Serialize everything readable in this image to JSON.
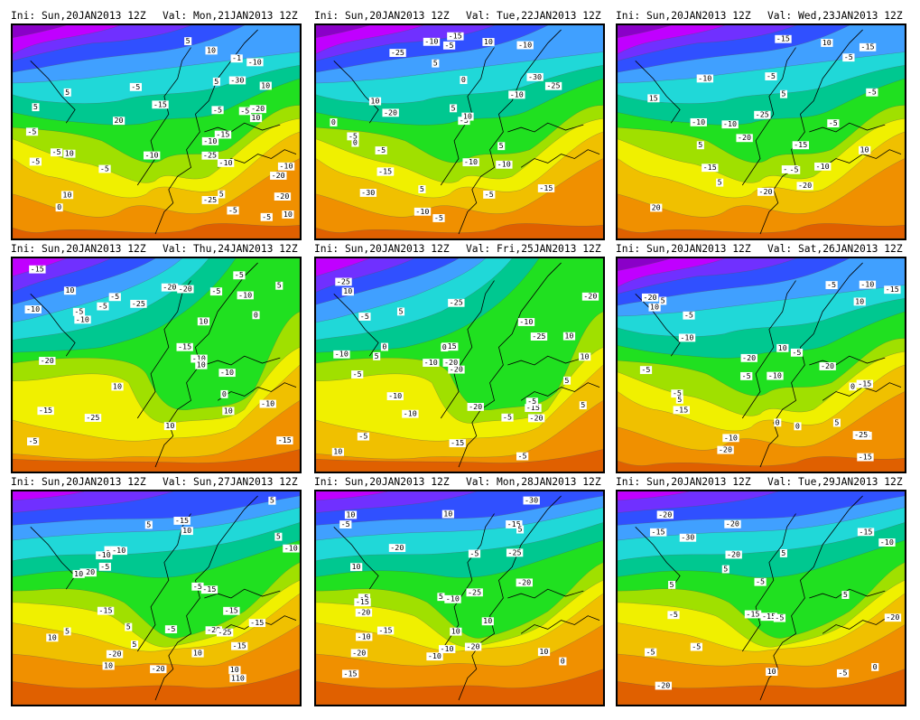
{
  "colors": {
    "deep_purple": "#8a00c8",
    "magenta": "#c000ff",
    "violet": "#7030ff",
    "blue": "#3050ff",
    "light_blue": "#40a0ff",
    "cyan": "#20d8d8",
    "teal": "#00c890",
    "green": "#20e020",
    "yellow_green": "#a0e000",
    "yellow": "#f0f000",
    "amber": "#f0c000",
    "orange": "#f09000",
    "dark_orange": "#e06000",
    "red": "#c02000"
  },
  "panels": [
    {
      "ini": "Ini: Sun,20JAN2013 12Z",
      "val": "Val: Mon,21JAN2013 12Z",
      "scheme": "cold_north",
      "labels": [
        "-25",
        "-10",
        "-5",
        "-20",
        "-25",
        "-30",
        "-20",
        "-15",
        "-20",
        "-5",
        "-15",
        "-10",
        "-5",
        "-10",
        "-5",
        "-5",
        "-10",
        "-5",
        "-1",
        "-5",
        "-10",
        "-5",
        "-5",
        "10",
        "10",
        "10",
        "5",
        "5",
        "10",
        "10",
        "10",
        "5",
        "5",
        "5",
        "20",
        "0"
      ]
    },
    {
      "ini": "Ini: Sun,20JAN2013 12Z",
      "val": "Val: Tue,22JAN2013 12Z",
      "scheme": "cold_north",
      "labels": [
        "-30",
        "-10",
        "-25",
        "-30",
        "-10",
        "-20",
        "-5",
        "-15",
        "-25",
        "-10",
        "-5",
        "-15",
        "-10",
        "-5",
        "-5",
        "-10",
        "-15",
        "0",
        "-15",
        "-10",
        "-5",
        "-5",
        "5",
        "10",
        "5",
        "5",
        "0",
        "10",
        "0",
        "5",
        "10"
      ]
    },
    {
      "ini": "Ini: Sun,20JAN2013 12Z",
      "val": "Val: Wed,23JAN2013 12Z",
      "scheme": "cold_north",
      "labels": [
        "-15",
        "-25",
        "-20",
        "-30",
        "-10",
        "-15",
        "-20",
        "-15",
        "-10",
        "-5",
        "-20",
        "-10",
        "-15",
        "-10",
        "-5",
        "-5",
        "-5",
        "-5",
        "5",
        "5",
        "10",
        "10",
        "20",
        "5",
        "15"
      ]
    },
    {
      "ini": "Ini: Sun,20JAN2013 12Z",
      "val": "Val: Thu,24JAN2013 12Z",
      "scheme": "cold_west",
      "labels": [
        "-10",
        "-25",
        "-20",
        "-25",
        "-10",
        "-15",
        "-5",
        "-15",
        "-20",
        "-20",
        "-10",
        "-5",
        "-10",
        "-15",
        "-10",
        "-5",
        "-5",
        "-10",
        "-15",
        "-5",
        "0",
        "-5",
        "0",
        "10",
        "10",
        "10",
        "5",
        "10",
        "10",
        "0",
        "10"
      ]
    },
    {
      "ini": "Ini: Sun,20JAN2013 12Z",
      "val": "Val: Fri,25JAN2013 12Z",
      "scheme": "cold_west",
      "labels": [
        "-15",
        "-20",
        "-25",
        "-10",
        "-25",
        "-15",
        "-5",
        "-10",
        "-20",
        "-20",
        "-5",
        "-25",
        "-20",
        "-20",
        "-15",
        "-10",
        "-5",
        "-5",
        "-10",
        "-5",
        "-10",
        "-5",
        "0",
        "10",
        "5",
        "5",
        "10",
        "0",
        "10",
        "5",
        "5",
        "10"
      ]
    },
    {
      "ini": "Ini: Sun,20JAN2013 12Z",
      "val": "Val: Sat,26JAN2013 12Z",
      "scheme": "cold_north",
      "labels": [
        "-15",
        "-20",
        "-25",
        "-20",
        "-25",
        "-10",
        "-20",
        "-15",
        "-20",
        "-10",
        "-5",
        "0",
        "-15",
        "-10",
        "-15",
        "-10",
        "-5",
        "0",
        "-5",
        "-5",
        "-5",
        "-5",
        "5",
        "5",
        "10",
        "5",
        "0",
        "10",
        "10"
      ]
    },
    {
      "ini": "Ini: Sun,20JAN2013 12Z",
      "val": "Val: Sun,27JAN2013 12Z",
      "scheme": "cold_north_warm_south",
      "labels": [
        "-20",
        "-20",
        "-15",
        "-15",
        "-20",
        "-20",
        "-25",
        "-15",
        "-20",
        "-10",
        "-15",
        "-10",
        "-15",
        "-5",
        "-10",
        "-5",
        "-15",
        "-5",
        "5",
        "5",
        "10",
        "10",
        "110",
        "10",
        "5",
        "5",
        "10",
        "5",
        "10",
        "10",
        "5"
      ]
    },
    {
      "ini": "Ini: Sun,20JAN2013 12Z",
      "val": "Val: Mon,28JAN2013 12Z",
      "scheme": "cold_north_warm_south",
      "labels": [
        "-30",
        "-20",
        "-25",
        "-15",
        "-25",
        "-20",
        "-15",
        "-10",
        "-20",
        "-15",
        "-20",
        "-10",
        "-10",
        "-5",
        "-5",
        "-15",
        "-20",
        "-10",
        "-5",
        "0",
        "10",
        "10",
        "10",
        "5",
        "10",
        "10",
        "5",
        "10"
      ]
    },
    {
      "ini": "Ini: Sun,20JAN2013 12Z",
      "val": "Val: Tue,29JAN2013 12Z",
      "scheme": "cold_north_warm_south",
      "labels": [
        "-30",
        "-20",
        "-20",
        "-15",
        "-20",
        "-5",
        "-20",
        "-15",
        "-10",
        "-20",
        "-15",
        "-15",
        "-5",
        "-5",
        "-5",
        "-5",
        "-5",
        "5",
        "0",
        "5",
        "5",
        "10",
        "5"
      ]
    }
  ]
}
